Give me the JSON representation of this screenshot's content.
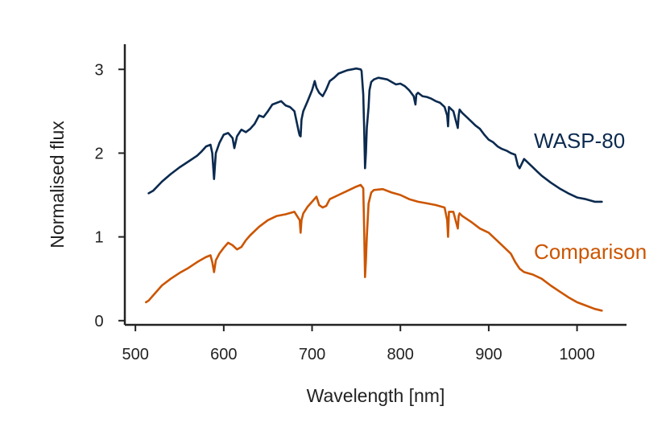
{
  "chart_data": {
    "type": "line",
    "xlabel": "Wavelength [nm]",
    "ylabel": "Normalised flux",
    "xlim": [
      488,
      1056
    ],
    "ylim": [
      -0.05,
      3.3
    ],
    "xticks": [
      500,
      600,
      700,
      800,
      900,
      1000
    ],
    "yticks": [
      0,
      1,
      2,
      3
    ],
    "grid": false,
    "legend": "inline labels at right end of each line",
    "series": [
      {
        "name": "WASP-80",
        "color": "#0b2a4f",
        "x": [
          515,
          520,
          530,
          540,
          550,
          560,
          570,
          575,
          580,
          585,
          587,
          589,
          591,
          595,
          600,
          605,
          610,
          612,
          615,
          618,
          620,
          625,
          630,
          635,
          640,
          645,
          650,
          655,
          660,
          665,
          670,
          675,
          680,
          685,
          686,
          687,
          688,
          690,
          695,
          700,
          703,
          705,
          708,
          712,
          716,
          720,
          725,
          730,
          735,
          740,
          745,
          750,
          755,
          756,
          758,
          759,
          760,
          761,
          762,
          764,
          765,
          767,
          770,
          775,
          780,
          785,
          790,
          795,
          800,
          805,
          810,
          815,
          817,
          818,
          820,
          825,
          830,
          835,
          840,
          845,
          850,
          853,
          854,
          855,
          860,
          865,
          866,
          867,
          870,
          875,
          880,
          885,
          890,
          895,
          900,
          905,
          910,
          915,
          920,
          925,
          930,
          933,
          935,
          940,
          945,
          950,
          955,
          960,
          970,
          980,
          990,
          1000,
          1010,
          1020,
          1028
        ],
        "y": [
          1.52,
          1.55,
          1.66,
          1.75,
          1.83,
          1.9,
          1.97,
          2.02,
          2.08,
          2.1,
          2.0,
          1.69,
          2.0,
          2.12,
          2.22,
          2.24,
          2.18,
          2.06,
          2.2,
          2.25,
          2.28,
          2.25,
          2.29,
          2.35,
          2.45,
          2.43,
          2.5,
          2.58,
          2.6,
          2.62,
          2.57,
          2.55,
          2.5,
          2.25,
          2.21,
          2.2,
          2.4,
          2.5,
          2.62,
          2.75,
          2.86,
          2.78,
          2.72,
          2.68,
          2.76,
          2.86,
          2.9,
          2.95,
          2.97,
          2.99,
          3.0,
          3.01,
          3.0,
          2.98,
          2.7,
          2.3,
          1.82,
          2.0,
          2.3,
          2.55,
          2.75,
          2.85,
          2.88,
          2.9,
          2.89,
          2.88,
          2.85,
          2.82,
          2.83,
          2.8,
          2.75,
          2.68,
          2.58,
          2.7,
          2.72,
          2.68,
          2.67,
          2.65,
          2.62,
          2.6,
          2.55,
          2.45,
          2.32,
          2.55,
          2.5,
          2.3,
          2.45,
          2.52,
          2.48,
          2.43,
          2.38,
          2.33,
          2.29,
          2.22,
          2.16,
          2.13,
          2.08,
          2.05,
          2.03,
          2.0,
          1.98,
          1.85,
          1.82,
          1.93,
          1.88,
          1.83,
          1.78,
          1.73,
          1.65,
          1.58,
          1.52,
          1.47,
          1.45,
          1.42,
          1.42
        ]
      },
      {
        "name": "Comparison",
        "color": "#cc5500",
        "x": [
          512,
          515,
          520,
          525,
          530,
          540,
          550,
          560,
          570,
          575,
          580,
          585,
          587,
          589,
          591,
          595,
          600,
          605,
          610,
          615,
          620,
          625,
          630,
          640,
          650,
          660,
          670,
          680,
          686,
          687,
          688,
          690,
          695,
          700,
          705,
          708,
          712,
          716,
          720,
          730,
          740,
          750,
          755,
          758,
          759,
          760,
          761,
          762,
          764,
          767,
          770,
          780,
          790,
          800,
          810,
          820,
          830,
          840,
          850,
          853,
          854,
          855,
          860,
          865,
          866,
          867,
          870,
          880,
          890,
          900,
          910,
          920,
          925,
          930,
          935,
          940,
          950,
          960,
          970,
          980,
          990,
          1000,
          1010,
          1020,
          1028
        ],
        "y": [
          0.22,
          0.24,
          0.3,
          0.36,
          0.42,
          0.5,
          0.57,
          0.63,
          0.7,
          0.73,
          0.76,
          0.78,
          0.7,
          0.58,
          0.72,
          0.8,
          0.87,
          0.93,
          0.9,
          0.85,
          0.88,
          0.96,
          1.02,
          1.12,
          1.2,
          1.25,
          1.27,
          1.3,
          1.2,
          1.05,
          1.2,
          1.28,
          1.36,
          1.42,
          1.48,
          1.38,
          1.35,
          1.37,
          1.45,
          1.5,
          1.55,
          1.6,
          1.62,
          1.58,
          1.1,
          0.52,
          0.72,
          1.0,
          1.4,
          1.53,
          1.56,
          1.57,
          1.53,
          1.5,
          1.45,
          1.42,
          1.4,
          1.38,
          1.35,
          1.2,
          1.0,
          1.3,
          1.3,
          1.1,
          1.25,
          1.28,
          1.25,
          1.18,
          1.1,
          1.05,
          0.95,
          0.85,
          0.8,
          0.7,
          0.62,
          0.58,
          0.55,
          0.5,
          0.42,
          0.35,
          0.28,
          0.22,
          0.18,
          0.14,
          0.12
        ]
      }
    ]
  }
}
